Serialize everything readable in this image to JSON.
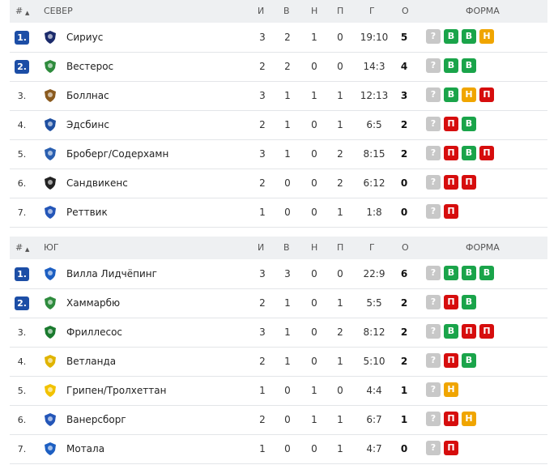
{
  "groups": [
    {
      "header": {
        "hash": "#",
        "sort_icon": "sort-asc-icon",
        "name": "СЕВЕР",
        "col_i": "И",
        "col_v": "В",
        "col_n": "Н",
        "col_p": "П",
        "col_g": "Г",
        "col_o": "О",
        "col_form": "ФОРМА"
      },
      "rows": [
        {
          "rank": "1.",
          "highlight": true,
          "team": "Сириус",
          "logo_color": "#1b2b6b",
          "i": "3",
          "v": "2",
          "n": "1",
          "p": "0",
          "g": "19:10",
          "o": "5",
          "form": [
            "?",
            "В",
            "В",
            "Н"
          ]
        },
        {
          "rank": "2.",
          "highlight": true,
          "team": "Вестерос",
          "logo_color": "#2e8b3d",
          "i": "2",
          "v": "2",
          "n": "0",
          "p": "0",
          "g": "14:3",
          "o": "4",
          "form": [
            "?",
            "В",
            "В"
          ]
        },
        {
          "rank": "3.",
          "highlight": false,
          "team": "Боллнас",
          "logo_color": "#8a5a1e",
          "i": "3",
          "v": "1",
          "n": "1",
          "p": "1",
          "g": "12:13",
          "o": "3",
          "form": [
            "?",
            "В",
            "Н",
            "П"
          ]
        },
        {
          "rank": "4.",
          "highlight": false,
          "team": "Эдсбинс",
          "logo_color": "#1e4fa0",
          "i": "2",
          "v": "1",
          "n": "0",
          "p": "1",
          "g": "6:5",
          "o": "2",
          "form": [
            "?",
            "П",
            "В"
          ]
        },
        {
          "rank": "5.",
          "highlight": false,
          "team": "Броберг/Содерхамн",
          "logo_color": "#2a5fb0",
          "i": "3",
          "v": "1",
          "n": "0",
          "p": "2",
          "g": "8:15",
          "o": "2",
          "form": [
            "?",
            "П",
            "В",
            "П"
          ]
        },
        {
          "rank": "6.",
          "highlight": false,
          "team": "Сандвикенс",
          "logo_color": "#222222",
          "i": "2",
          "v": "0",
          "n": "0",
          "p": "2",
          "g": "6:12",
          "o": "0",
          "form": [
            "?",
            "П",
            "П"
          ]
        },
        {
          "rank": "7.",
          "highlight": false,
          "team": "Реттвик",
          "logo_color": "#2456b8",
          "i": "1",
          "v": "0",
          "n": "0",
          "p": "1",
          "g": "1:8",
          "o": "0",
          "form": [
            "?",
            "П"
          ]
        }
      ]
    },
    {
      "header": {
        "hash": "#",
        "sort_icon": "sort-asc-icon",
        "name": "ЮГ",
        "col_i": "И",
        "col_v": "В",
        "col_n": "Н",
        "col_p": "П",
        "col_g": "Г",
        "col_o": "О",
        "col_form": "ФОРМА"
      },
      "rows": [
        {
          "rank": "1.",
          "highlight": true,
          "team": "Вилла Лидчёпинг",
          "logo_color": "#1d5fc2",
          "i": "3",
          "v": "3",
          "n": "0",
          "p": "0",
          "g": "22:9",
          "o": "6",
          "form": [
            "?",
            "В",
            "В",
            "В"
          ]
        },
        {
          "rank": "2.",
          "highlight": true,
          "team": "Хаммарбю",
          "logo_color": "#2e8b3d",
          "i": "2",
          "v": "1",
          "n": "0",
          "p": "1",
          "g": "5:5",
          "o": "2",
          "form": [
            "?",
            "П",
            "В"
          ]
        },
        {
          "rank": "3.",
          "highlight": false,
          "team": "Фриллесос",
          "logo_color": "#1a7a2e",
          "i": "3",
          "v": "1",
          "n": "0",
          "p": "2",
          "g": "8:12",
          "o": "2",
          "form": [
            "?",
            "В",
            "П",
            "П"
          ]
        },
        {
          "rank": "4.",
          "highlight": false,
          "team": "Ветланда",
          "logo_color": "#e0b400",
          "i": "2",
          "v": "1",
          "n": "0",
          "p": "1",
          "g": "5:10",
          "o": "2",
          "form": [
            "?",
            "П",
            "В"
          ]
        },
        {
          "rank": "5.",
          "highlight": false,
          "team": "Грипен/Тролхеттан",
          "logo_color": "#f2c200",
          "i": "1",
          "v": "0",
          "n": "1",
          "p": "0",
          "g": "4:4",
          "o": "1",
          "form": [
            "?",
            "Н"
          ]
        },
        {
          "rank": "6.",
          "highlight": false,
          "team": "Ванерсборг",
          "logo_color": "#2456b8",
          "i": "2",
          "v": "0",
          "n": "1",
          "p": "1",
          "g": "6:7",
          "o": "1",
          "form": [
            "?",
            "П",
            "Н"
          ]
        },
        {
          "rank": "7.",
          "highlight": false,
          "team": "Мотала",
          "logo_color": "#1d5fc2",
          "i": "1",
          "v": "0",
          "n": "0",
          "p": "1",
          "g": "4:7",
          "o": "0",
          "form": [
            "?",
            "П"
          ]
        }
      ]
    }
  ],
  "form_colors": {
    "?": "#c8c8c8",
    "В": "#1aa44a",
    "Н": "#f0a500",
    "П": "#d60d0d"
  }
}
